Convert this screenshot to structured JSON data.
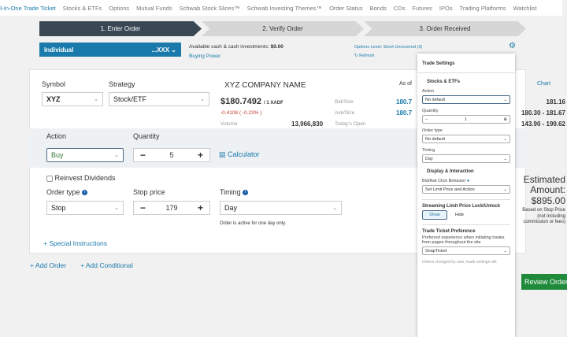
{
  "nav": {
    "items": [
      "All-In-One Trade Ticket",
      "Stocks & ETFs",
      "Options",
      "Mutual Funds",
      "Schwab Stock Slices™",
      "Schwab Investing Themes™",
      "Order Status",
      "Bonds",
      "CDs",
      "Futures",
      "IPOs",
      "Trading Platforms",
      "Watchlist"
    ]
  },
  "steps": [
    "1. Enter Order",
    "2. Verify Order",
    "3. Order Received"
  ],
  "account": {
    "name": "Individual",
    "number": "...XXX",
    "cash_label": "Available cash & cash investments:",
    "cash_value": "$0.00",
    "buying_power": "Buying Power",
    "options_level": "Options Level: Short Uncovered (3)",
    "refresh": "Refresh"
  },
  "order": {
    "symbol_label": "Symbol",
    "symbol": "XYZ",
    "strategy_label": "Strategy",
    "strategy": "Stock/ETF",
    "action_label": "Action",
    "action": "Buy",
    "quantity_label": "Quantity",
    "quantity": "5",
    "calculator": "Calculator",
    "reinvest": "Reinvest Dividends",
    "order_type_label": "Order type",
    "order_type": "Stop",
    "stop_price_label": "Stop price",
    "stop_price": "179",
    "timing_label": "Timing",
    "timing": "Day",
    "timing_note": "Order is active for one day only.",
    "special": "Special Instructions",
    "add_order": "Add Order",
    "add_conditional": "Add Conditional"
  },
  "quote": {
    "company": "XYZ COMPANY NAME",
    "as_of": "As of",
    "chart": "Chart",
    "price": "$180.7492",
    "price_suffix": "/ 1 XADF",
    "change": "-0.4108 ( -0.23% )",
    "volume_label": "Volume",
    "volume": "13,966,830",
    "bid_label": "Bid/Size",
    "bid": "180.7",
    "ask_label": "Ask/Size",
    "ask": "180.7",
    "open_label": "Today's Open",
    "r1": "181.16",
    "r2": "180.30 - 181.67",
    "r3": "143.90 - 199.62"
  },
  "estimate": {
    "title": "Estimated Amount:",
    "value": "$895.00",
    "note1": "Based on Stop Price",
    "note2": "(not including commission or fees)",
    "review": "Review Order"
  },
  "settings": {
    "title": "Trade Settings",
    "stocks": "Stocks & ETFs",
    "action_label": "Action",
    "action": "No default",
    "quantity_label": "Quantity",
    "quantity": "1",
    "order_type_label": "Order type",
    "order_type": "No default",
    "timing_label": "Timing",
    "timing": "Day",
    "display": "Display & Interaction",
    "bidask_label": "Bid/Ask Click Behavior",
    "bidask": "Set Limit Price and Action",
    "streaming": "Streaming Limit Price Lock/Unlock",
    "show": "Show",
    "hide": "Hide",
    "pref_title": "Trade Ticket Preference",
    "pref_desc": "Preferred experience when initiating trades from pages throughout the site",
    "pref": "SnapTicket",
    "footer": "Unless changed by user, trade settings will"
  },
  "colors": {
    "accent": "#1a7aab",
    "step_active": "#3a4856",
    "review": "#1e8a3a",
    "negative": "#c0392b"
  }
}
